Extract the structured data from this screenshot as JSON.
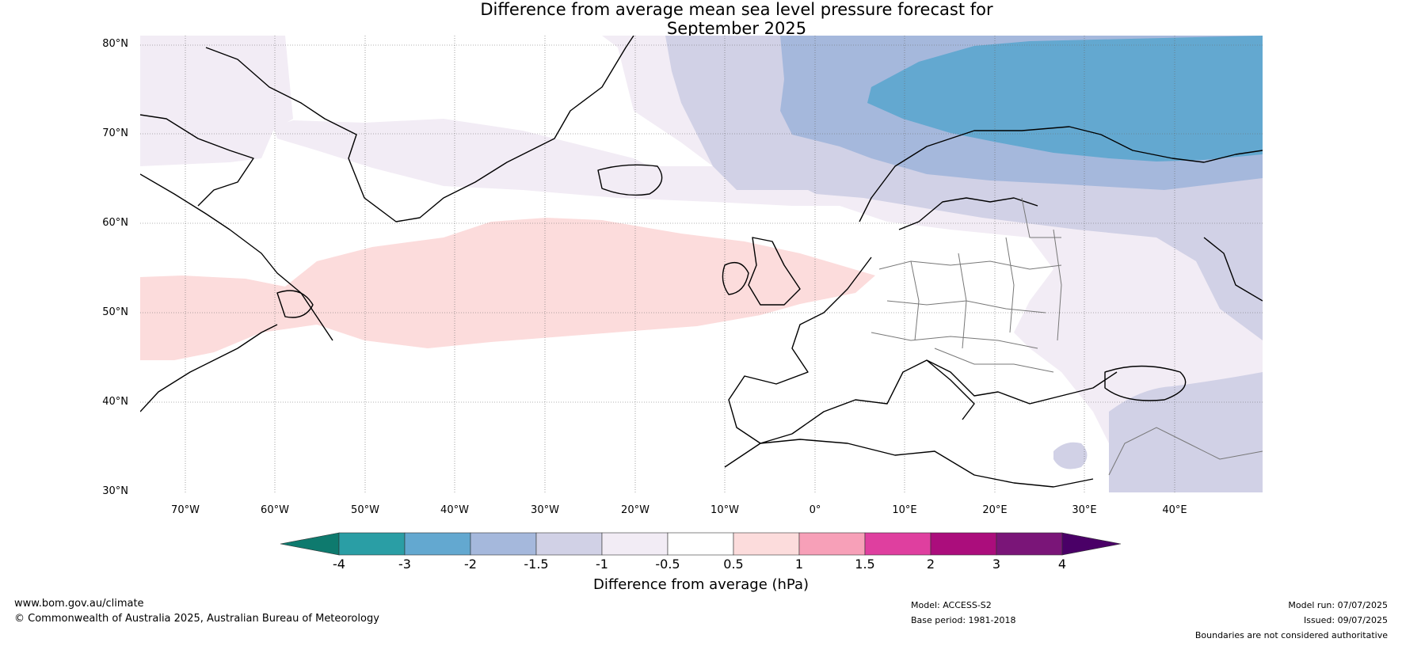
{
  "title_line1": "Difference from average mean sea level pressure forecast for",
  "title_line2": "September 2025",
  "map": {
    "region": "North Atlantic and Europe",
    "lat_labels": [
      "80°N",
      "70°N",
      "60°N",
      "50°N",
      "40°N",
      "30°N"
    ],
    "lon_labels": [
      "70°W",
      "60°W",
      "50°W",
      "40°W",
      "30°W",
      "20°W",
      "10°W",
      "0°",
      "10°E",
      "20°E",
      "30°E",
      "40°E"
    ],
    "anomaly_regions": [
      {
        "name": "arctic-negative-core",
        "level": "-3 to -2",
        "color": "#63a8d0"
      },
      {
        "name": "arctic-negative-outer",
        "level": "-2 to -1.5",
        "color": "#a5b8dc"
      },
      {
        "name": "negative-band",
        "level": "-1.5 to -1",
        "color": "#d1d1e6"
      },
      {
        "name": "weak-negative",
        "level": "-1 to -0.5",
        "color": "#f2ecf5"
      },
      {
        "name": "north-atlantic-positive",
        "level": "0.5 to 1",
        "color": "#fcdcdc"
      }
    ]
  },
  "colorbar": {
    "ticks": [
      "-4",
      "-3",
      "-2",
      "-1.5",
      "-1",
      "-0.5",
      "0.5",
      "1",
      "1.5",
      "2",
      "3",
      "4"
    ],
    "colors": [
      "#0e7a6e",
      "#2a9ea5",
      "#63a8d0",
      "#a5b8dc",
      "#d1d1e6",
      "#f2ecf5",
      "#ffffff",
      "#fcdcdc",
      "#f7a0b8",
      "#df3f9f",
      "#ab0d7c",
      "#7a1578",
      "#4a0067"
    ],
    "label": "Difference from average (hPa)"
  },
  "footer": {
    "url": "www.bom.gov.au/climate",
    "copyright": "© Commonwealth of Australia 2025, Australian Bureau of Meteorology",
    "model": "Model: ACCESS-S2",
    "base_period": "Base period: 1981-2018",
    "model_run": "Model run: 07/07/2025",
    "issued": "Issued: 09/07/2025",
    "disclaimer": "Boundaries are not considered authoritative"
  }
}
